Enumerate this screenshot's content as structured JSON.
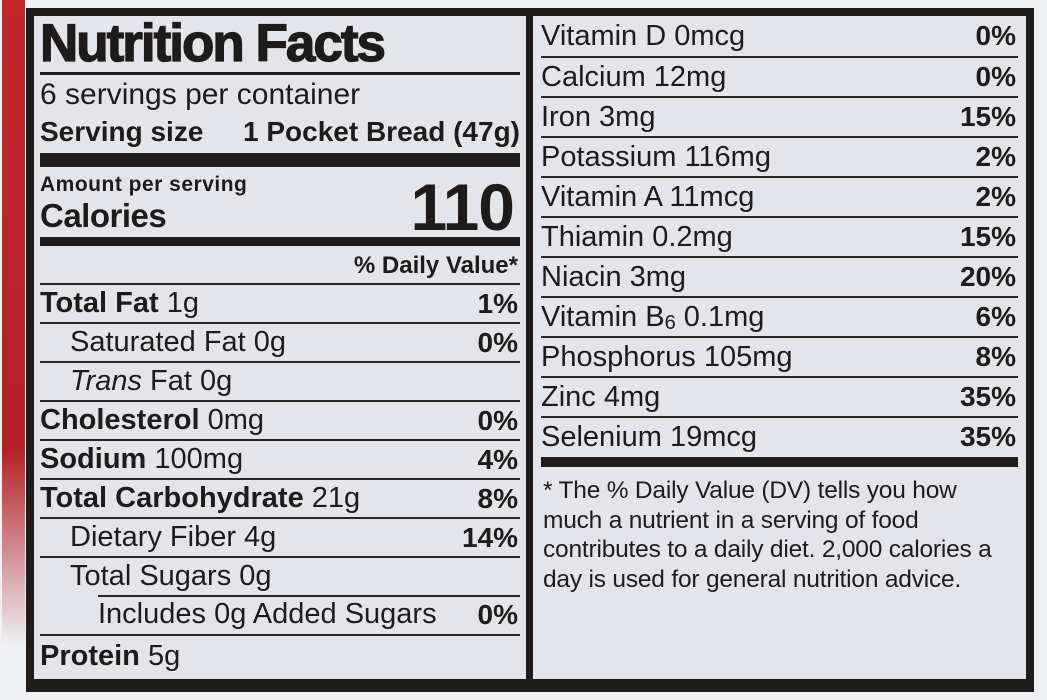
{
  "label": {
    "title": "Nutrition Facts",
    "servings_per_container": "6 servings per container",
    "serving_size_label": "Serving size",
    "serving_size_value": "1 Pocket Bread (47g)",
    "amount_per_serving": "Amount per serving",
    "calories_label": "Calories",
    "calories_value": "110",
    "daily_value_header": "% Daily Value*",
    "nutrient_rows": [
      {
        "bold": "Total Fat",
        "rest": " 1g",
        "pct": "1%"
      },
      {
        "rest": "Saturated Fat 0g",
        "pct": "0%"
      },
      {
        "italic": "Trans",
        "rest": " Fat 0g"
      },
      {
        "bold": "Cholesterol",
        "rest": " 0mg",
        "pct": "0%"
      },
      {
        "bold": "Sodium",
        "rest": " 100mg",
        "pct": "4%"
      },
      {
        "bold": "Total Carbohydrate",
        "rest": " 21g",
        "pct": "8%"
      },
      {
        "rest": "Dietary Fiber 4g",
        "pct": "14%"
      },
      {
        "rest": "Total Sugars 0g"
      },
      {
        "rest": "Includes 0g Added Sugars",
        "pct": "0%"
      },
      {
        "bold": "Protein",
        "rest": " 5g"
      }
    ],
    "vitamin_rows": [
      {
        "name": "Vitamin D 0mcg",
        "pct": "0%"
      },
      {
        "name": "Calcium 12mg",
        "pct": "0%"
      },
      {
        "name": "Iron 3mg",
        "pct": "15%"
      },
      {
        "name": "Potassium 116mg",
        "pct": "2%"
      },
      {
        "name": "Vitamin A 11mcg",
        "pct": "2%"
      },
      {
        "name": "Thiamin 0.2mg",
        "pct": "15%"
      },
      {
        "name": "Niacin 3mg",
        "pct": "20%"
      },
      {
        "name": "Vitamin B",
        "sub": "6",
        "rest": " 0.1mg",
        "pct": "6%"
      },
      {
        "name": "Phosphorus 105mg",
        "pct": "8%"
      },
      {
        "name": "Zinc 4mg",
        "pct": "35%"
      },
      {
        "name": "Selenium 19mcg",
        "pct": "35%"
      }
    ],
    "footnote": "* The % Daily Value (DV) tells you how much a nutrient in a serving of food contributes to a daily diet. 2,000 calories a day is used for general nutrition advice."
  },
  "colors": {
    "label_background": "#e4e5eb",
    "ink": "#1f1b1a",
    "package_red": "#b5222a"
  }
}
